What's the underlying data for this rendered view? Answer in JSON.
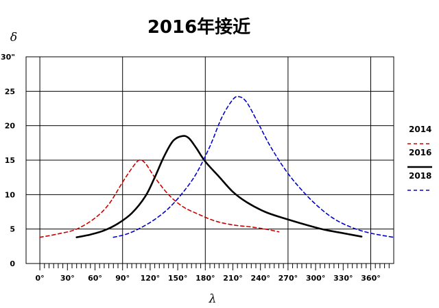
{
  "chart_data": {
    "type": "line",
    "title": "2016年接近",
    "xlabel": "λ",
    "ylabel": "δ",
    "y_unit": "\"",
    "x_unit": "°",
    "xlim": [
      -15,
      385
    ],
    "ylim": [
      0,
      30
    ],
    "x_major_ticks": [
      0,
      30,
      60,
      90,
      120,
      150,
      180,
      210,
      240,
      270,
      300,
      330,
      360
    ],
    "x_tick_labels": [
      "0°",
      "30°",
      "60°",
      "90°",
      "120°",
      "150°",
      "180°",
      "210°",
      "240°",
      "270°",
      "300°",
      "330°",
      "360°"
    ],
    "y_major_ticks": [
      0,
      5,
      10,
      15,
      20,
      25,
      30
    ],
    "y_tick_labels": [
      "0",
      "5",
      "10",
      "15",
      "20",
      "25",
      "30\""
    ],
    "grid_x": [
      0,
      90,
      180,
      270,
      360
    ],
    "grid_y": [
      5,
      10,
      15,
      20,
      25,
      30
    ],
    "legend_position": "right",
    "series": [
      {
        "name": "2014",
        "color": "#cc0000",
        "style": "dashed",
        "points": [
          [
            0,
            3.8
          ],
          [
            20,
            4.3
          ],
          [
            40,
            5.0
          ],
          [
            60,
            6.6
          ],
          [
            75,
            8.6
          ],
          [
            90,
            11.8
          ],
          [
            100,
            13.8
          ],
          [
            108,
            15.0
          ],
          [
            115,
            14.5
          ],
          [
            125,
            12.5
          ],
          [
            140,
            10.0
          ],
          [
            155,
            8.3
          ],
          [
            170,
            7.3
          ],
          [
            190,
            6.2
          ],
          [
            210,
            5.6
          ],
          [
            230,
            5.3
          ],
          [
            245,
            5.0
          ],
          [
            260,
            4.6
          ]
        ]
      },
      {
        "name": "2016",
        "color": "#000000",
        "style": "solid",
        "points": [
          [
            40,
            3.8
          ],
          [
            55,
            4.2
          ],
          [
            70,
            4.8
          ],
          [
            85,
            5.8
          ],
          [
            100,
            7.3
          ],
          [
            115,
            9.8
          ],
          [
            125,
            12.5
          ],
          [
            135,
            15.5
          ],
          [
            145,
            17.8
          ],
          [
            155,
            18.5
          ],
          [
            162,
            18.2
          ],
          [
            170,
            16.8
          ],
          [
            180,
            14.8
          ],
          [
            195,
            12.6
          ],
          [
            210,
            10.4
          ],
          [
            225,
            8.9
          ],
          [
            245,
            7.5
          ],
          [
            265,
            6.6
          ],
          [
            290,
            5.6
          ],
          [
            310,
            4.9
          ],
          [
            330,
            4.4
          ],
          [
            350,
            3.9
          ]
        ]
      },
      {
        "name": "2018",
        "color": "#0000cc",
        "style": "dashed",
        "points": [
          [
            80,
            3.8
          ],
          [
            95,
            4.3
          ],
          [
            110,
            5.2
          ],
          [
            125,
            6.4
          ],
          [
            140,
            8.0
          ],
          [
            155,
            10.2
          ],
          [
            170,
            13.0
          ],
          [
            185,
            17.0
          ],
          [
            198,
            21.2
          ],
          [
            210,
            23.8
          ],
          [
            217,
            24.2
          ],
          [
            225,
            23.4
          ],
          [
            237,
            20.5
          ],
          [
            250,
            17.2
          ],
          [
            265,
            14.0
          ],
          [
            280,
            11.4
          ],
          [
            300,
            8.6
          ],
          [
            320,
            6.5
          ],
          [
            340,
            5.2
          ],
          [
            360,
            4.4
          ],
          [
            385,
            3.8
          ]
        ]
      }
    ]
  }
}
